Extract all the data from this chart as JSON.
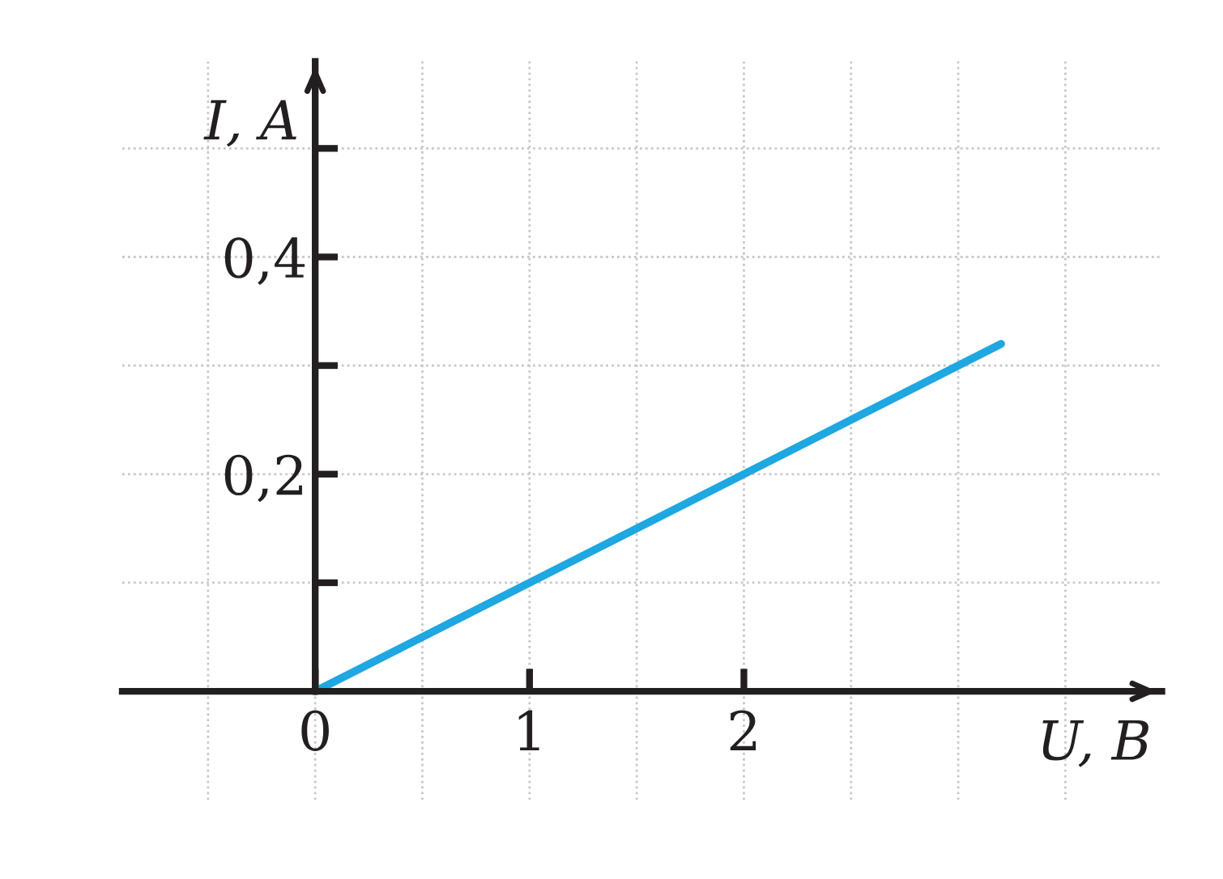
{
  "chart_data": {
    "type": "line",
    "xlabel": "U, В",
    "ylabel": "I, A",
    "series": [
      {
        "color": "#1ea7e1",
        "x": [
          0,
          3.2
        ],
        "values": [
          0,
          0.32
        ]
      }
    ],
    "xlim": [
      -0.9,
      3.95
    ],
    "ylim": [
      -0.1,
      0.58
    ],
    "xticks": [
      {
        "value": -0.5,
        "label": null
      },
      {
        "value": 0,
        "label": "0"
      },
      {
        "value": 0.5,
        "label": null
      },
      1,
      {
        "value": 1.5,
        "label": null
      },
      2,
      {
        "value": 2.5,
        "label": null
      },
      {
        "value": 3,
        "label": null
      },
      {
        "value": 3.5,
        "label": null
      }
    ],
    "yticks": [
      {
        "value": 0.1,
        "label": null
      },
      {
        "value": 0.2,
        "label": "0,2"
      },
      {
        "value": 0.3,
        "label": null
      },
      {
        "value": 0.4,
        "label": "0,4"
      },
      {
        "value": 0.5,
        "label": null
      }
    ],
    "grid": true
  }
}
